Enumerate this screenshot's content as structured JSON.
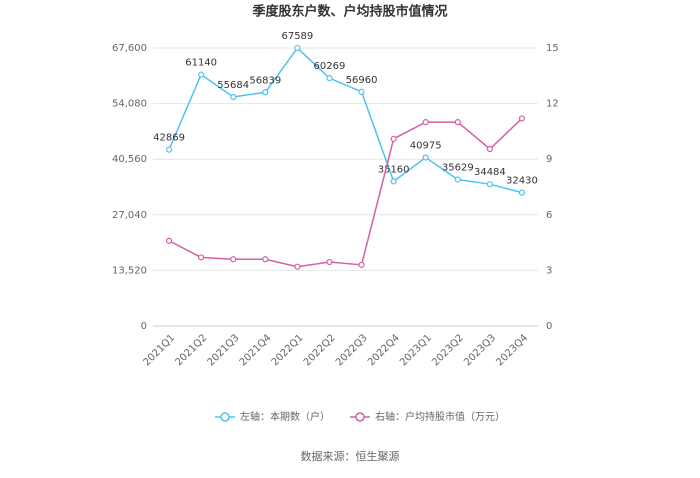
{
  "chart_data": {
    "type": "line",
    "title": "季度股东户数、户均持股市值情况",
    "categories": [
      "2021Q1",
      "2021Q2",
      "2021Q3",
      "2021Q4",
      "2022Q1",
      "2022Q2",
      "2022Q3",
      "2022Q4",
      "2023Q1",
      "2023Q2",
      "2023Q3",
      "2023Q4"
    ],
    "series": [
      {
        "name": "左轴：本期数（户）",
        "color": "#4fc3f0",
        "values": [
          42869,
          61140,
          55684,
          56839,
          67589,
          60269,
          56960,
          35160,
          40975,
          35629,
          34484,
          32430
        ]
      },
      {
        "name": "右轴：户均持股市值（万元）",
        "color": "#d460a3",
        "axis": "y2",
        "values": [
          4.6,
          3.7,
          3.6,
          3.6,
          3.2,
          3.45,
          3.3,
          10.1,
          11.0,
          11.0,
          9.55,
          11.2
        ]
      }
    ],
    "ylim": [
      0,
      67600
    ],
    "yticks": [
      0,
      {
        "value": 13520,
        "label": "13,520"
      },
      {
        "value": 27040,
        "label": "27,040"
      },
      {
        "value": 40560,
        "label": "40,560"
      },
      {
        "value": 54080,
        "label": "54,080"
      },
      {
        "value": 67600,
        "label": "67,600"
      }
    ],
    "y2lim": [
      0,
      15
    ],
    "y2ticks": [
      0,
      3,
      6,
      9,
      12,
      15
    ],
    "grid": true,
    "legend": "bottom",
    "source": "数据来源：恒生聚源"
  }
}
